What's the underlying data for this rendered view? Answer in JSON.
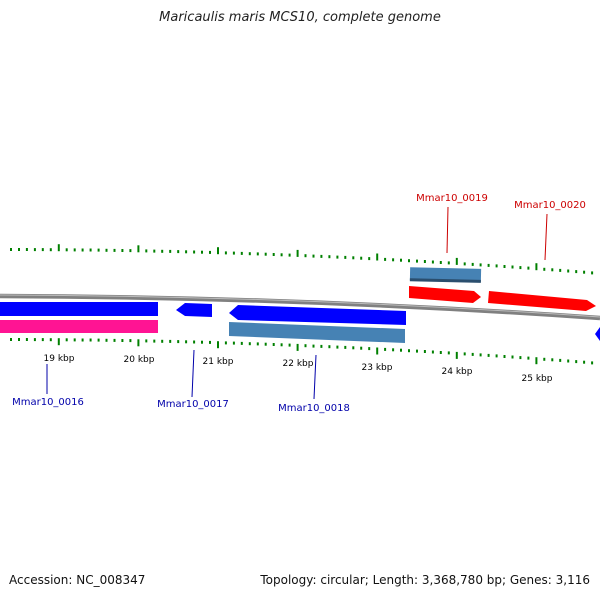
{
  "title": "Maricaulis maris MCS10, complete genome",
  "footer": {
    "accession": "Accession: NC_008347",
    "summary": "Topology: circular; Length: 3,368,780 bp; Genes: 3,116"
  },
  "colors": {
    "forward_cds": "#ff0000",
    "forward_rna": "#4682b4",
    "reverse_cds": "#0000ff",
    "reverse_rna": "#ff1493",
    "backbone": "#808080",
    "ticks": "#008000",
    "forward_label": "#cc0000",
    "reverse_label": "#0000aa"
  },
  "kbp_labels": [
    "19 kbp",
    "20 kbp",
    "21 kbp",
    "22 kbp",
    "23 kbp",
    "24 kbp",
    "25 kbp"
  ],
  "genes_forward": [
    "Mmar10_0019",
    "Mmar10_0020"
  ],
  "genes_reverse": [
    "Mmar10_0016",
    "Mmar10_0017",
    "Mmar10_0018"
  ]
}
